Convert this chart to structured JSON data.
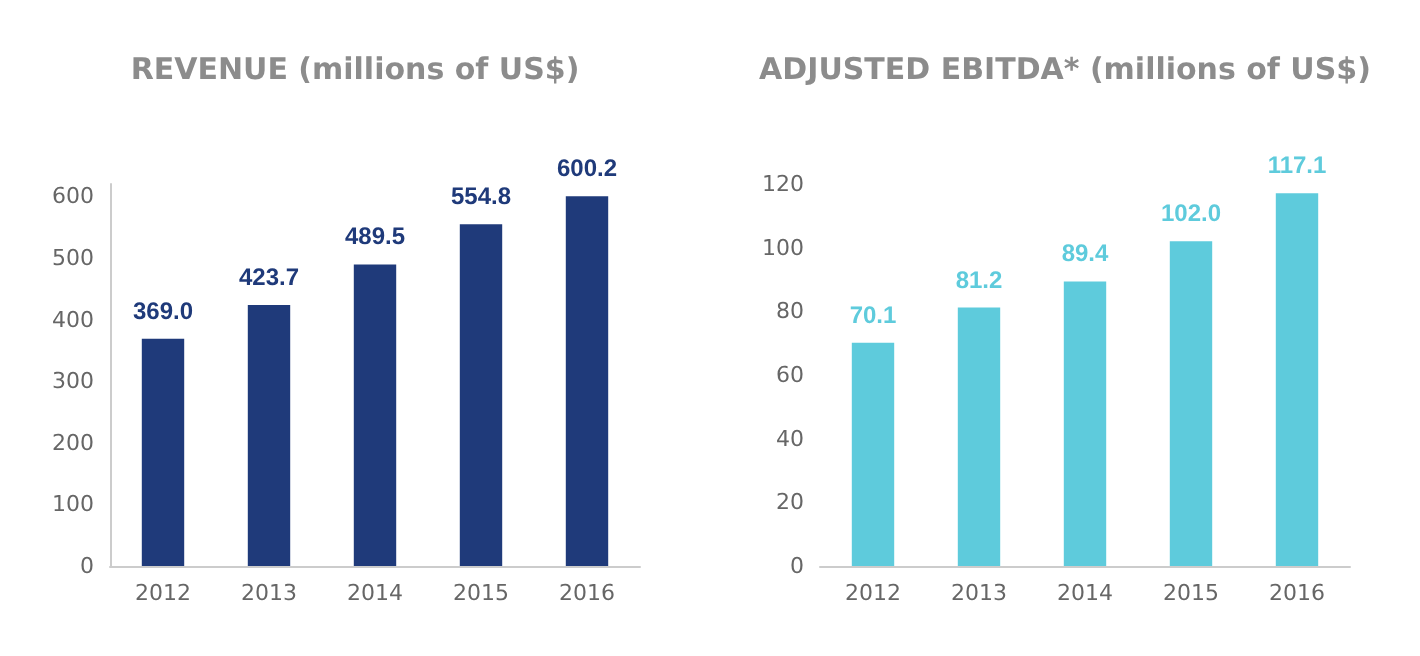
{
  "chart_data": [
    {
      "type": "bar",
      "title": "REVENUE (millions of US$)",
      "categories": [
        "2012",
        "2013",
        "2014",
        "2015",
        "2016"
      ],
      "values": [
        369.0,
        423.7,
        489.5,
        554.8,
        600.2
      ],
      "value_labels": [
        "369.0",
        "423.7",
        "489.5",
        "554.8",
        "600.2"
      ],
      "color": "#1f3a7a",
      "ylim": [
        0,
        620
      ],
      "yticks": [
        0,
        100,
        200,
        300,
        400,
        500,
        600
      ],
      "grid": false
    },
    {
      "type": "bar",
      "title": "ADJUSTED EBITDA* (millions of US$)",
      "categories": [
        "2012",
        "2013",
        "2014",
        "2015",
        "2016"
      ],
      "values": [
        70.1,
        81.2,
        89.4,
        102.0,
        117.1
      ],
      "value_labels": [
        "70.1",
        "81.2",
        "89.4",
        "102.0",
        "117.1"
      ],
      "color": "#5ecbdc",
      "ylim": [
        0,
        120
      ],
      "yticks": [
        0,
        20,
        40,
        60,
        80,
        100,
        120
      ],
      "grid": false
    }
  ]
}
